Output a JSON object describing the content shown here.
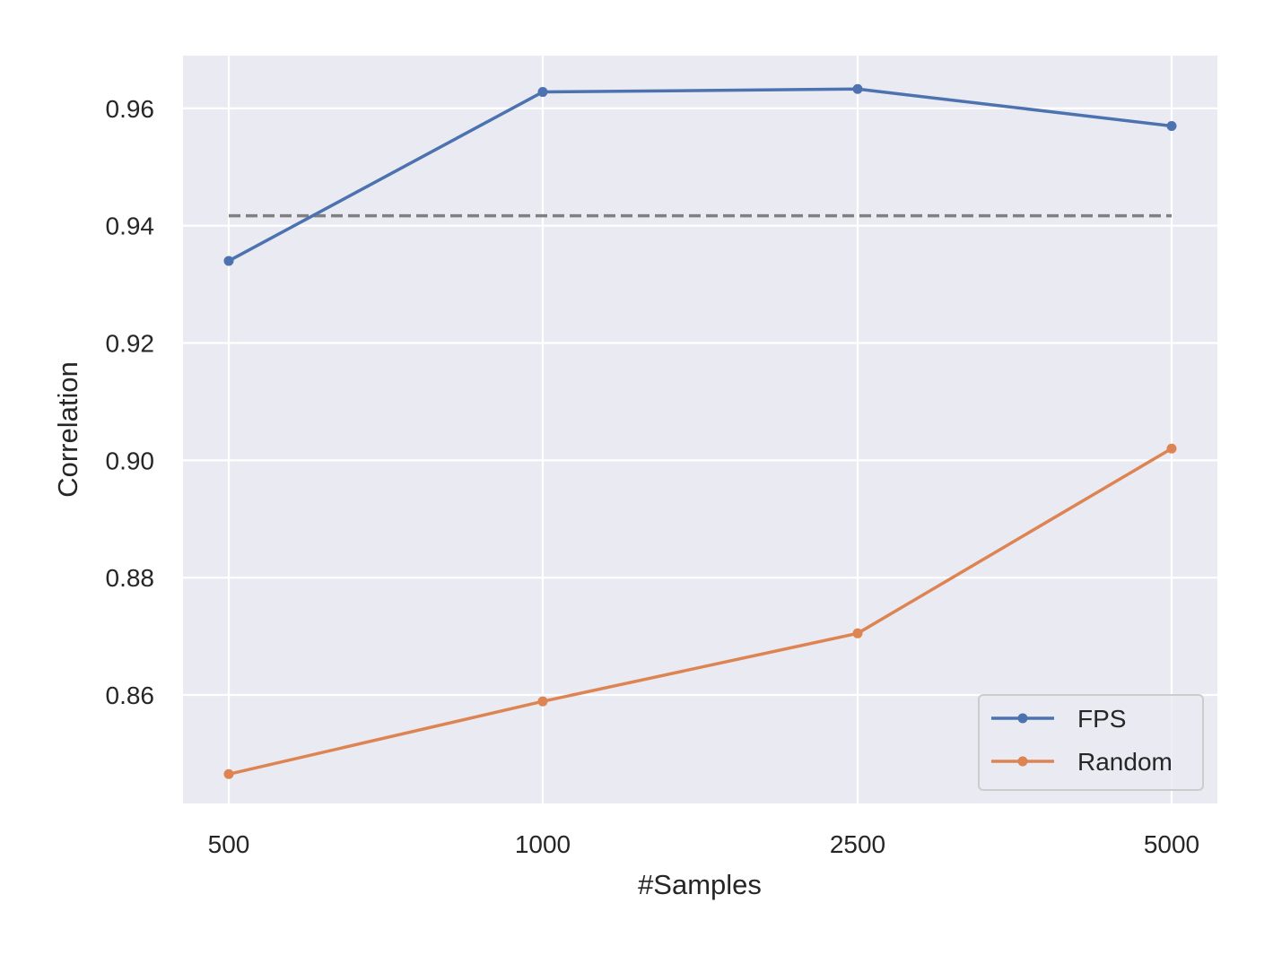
{
  "chart_data": {
    "type": "line",
    "categories": [
      "500",
      "1000",
      "2500",
      "5000"
    ],
    "series": [
      {
        "name": "FPS",
        "values": [
          0.934,
          0.9628,
          0.9633,
          0.957
        ],
        "color": "#4c72b0",
        "marker": "circle"
      },
      {
        "name": "Random",
        "values": [
          0.8465,
          0.8589,
          0.8705,
          0.902
        ],
        "color": "#dd8452",
        "marker": "circle"
      }
    ],
    "reference_line": {
      "value": 0.9417,
      "style": "dashed",
      "color": "#808080"
    },
    "xlabel": "#Samples",
    "ylabel": "Correlation",
    "ylim": [
      0.8415,
      0.969
    ],
    "yticks": [
      0.86,
      0.88,
      0.9,
      0.92,
      0.94,
      0.96
    ],
    "ytick_labels": [
      "0.86",
      "0.88",
      "0.90",
      "0.92",
      "0.94",
      "0.96"
    ],
    "grid": true,
    "background": "#eaeaf2",
    "legend_position": "lower-right"
  }
}
